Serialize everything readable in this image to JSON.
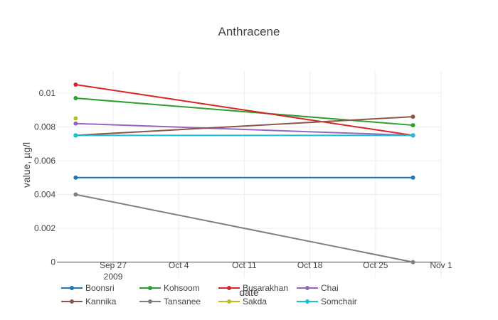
{
  "chart_data": {
    "type": "line",
    "title": "Anthracene",
    "xlabel": "date",
    "ylabel": "value, µg/l",
    "x": [
      "2009-09-23",
      "2009-10-29"
    ],
    "xlim": [
      "2009-09-21",
      "2009-11-01"
    ],
    "ylim": [
      -0.0009,
      0.0113
    ],
    "x_ticks": [
      {
        "date": "2009-09-27",
        "label": "Sep 27",
        "sublabel": "2009"
      },
      {
        "date": "2009-10-04",
        "label": "Oct 4"
      },
      {
        "date": "2009-10-11",
        "label": "Oct 11"
      },
      {
        "date": "2009-10-18",
        "label": "Oct 18"
      },
      {
        "date": "2009-10-25",
        "label": "Oct 25"
      },
      {
        "date": "2009-11-01",
        "label": "Nov 1"
      }
    ],
    "y_ticks": [
      {
        "value": 0,
        "label": "0"
      },
      {
        "value": 0.002,
        "label": "0.002"
      },
      {
        "value": 0.004,
        "label": "0.004"
      },
      {
        "value": 0.006,
        "label": "0.006"
      },
      {
        "value": 0.008,
        "label": "0.008"
      },
      {
        "value": 0.01,
        "label": "0.01"
      }
    ],
    "grid": true,
    "legend_position": "bottom",
    "series": [
      {
        "name": "Boonsri",
        "color": "#1f77b4",
        "x": [
          "2009-09-23",
          "2009-10-29"
        ],
        "values": [
          0.005,
          0.005
        ]
      },
      {
        "name": "Kohsoom",
        "color": "#2ca02c",
        "x": [
          "2009-09-23",
          "2009-10-29"
        ],
        "values": [
          0.0097,
          0.0081
        ]
      },
      {
        "name": "Busarakhan",
        "color": "#d62728",
        "x": [
          "2009-09-23",
          "2009-10-29"
        ],
        "values": [
          0.0105,
          0.0075
        ]
      },
      {
        "name": "Chai",
        "color": "#9467bd",
        "x": [
          "2009-09-23",
          "2009-10-29"
        ],
        "values": [
          0.0082,
          0.0075
        ]
      },
      {
        "name": "Kannika",
        "color": "#8c564b",
        "x": [
          "2009-09-23",
          "2009-10-29"
        ],
        "values": [
          0.0075,
          0.0086
        ]
      },
      {
        "name": "Tansanee",
        "color": "#7f7f7f",
        "x": [
          "2009-09-23",
          "2009-10-29"
        ],
        "values": [
          0.004,
          0.0
        ]
      },
      {
        "name": "Sakda",
        "color": "#bcbd22",
        "x": [
          "2009-09-23"
        ],
        "values": [
          0.0085
        ]
      },
      {
        "name": "Somchair",
        "color": "#17becf",
        "x": [
          "2009-09-23",
          "2009-10-29"
        ],
        "values": [
          0.0075,
          0.0075
        ]
      }
    ]
  }
}
